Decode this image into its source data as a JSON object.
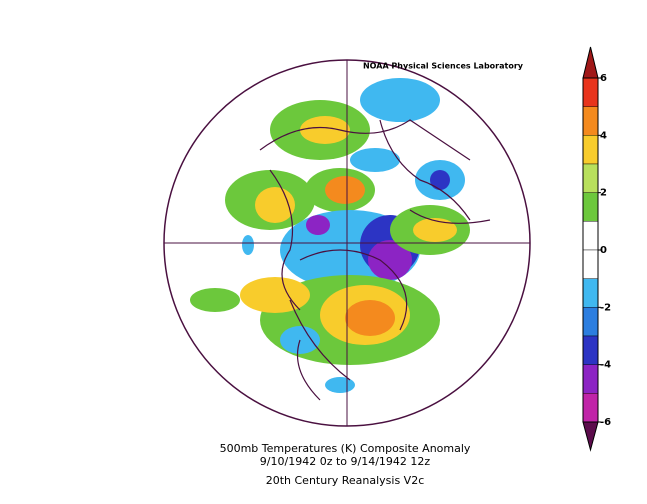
{
  "credit": "NOAA Physical Sciences Laboratory",
  "caption": {
    "line1": "500mb Temperatures (K)   Composite Anomaly",
    "line2": "9/10/1942 0z   to 9/14/1942 12z",
    "line3": "20th Century Reanalysis V2c"
  },
  "colorbar": {
    "lim": [
      -6,
      6
    ],
    "ticks": [
      6,
      4,
      2,
      0,
      -2,
      -4,
      -6
    ],
    "colors": [
      "#e8341c",
      "#f48a1e",
      "#f8cc2c",
      "#b8e05c",
      "#6cc83c",
      "#ffffff",
      "#ffffff",
      "#40b8f0",
      "#2c7ee0",
      "#2c34c4",
      "#8c24c4",
      "#c024a8"
    ],
    "over": "#a01818",
    "under": "#5c0c4c"
  }
}
